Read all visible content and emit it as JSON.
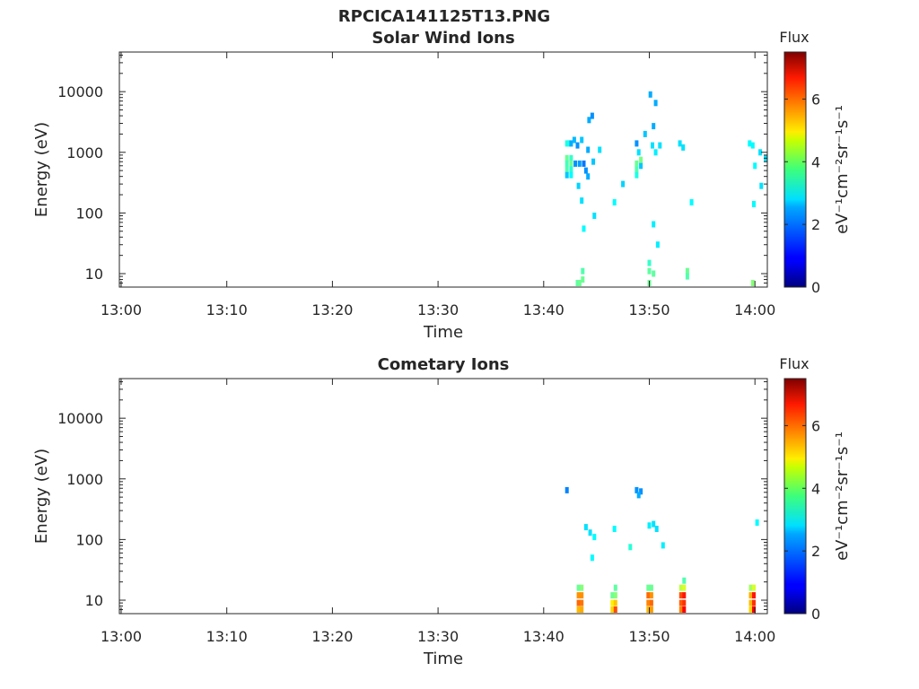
{
  "figure": {
    "title": "RPCICA141125T13.PNG"
  },
  "chart_data": [
    {
      "type": "heatmap",
      "title": "Solar Wind Ions",
      "xlabel": "Time",
      "ylabel": "Energy (eV)",
      "x_ticks": [
        "13:00",
        "13:10",
        "13:20",
        "13:30",
        "13:40",
        "13:50",
        "14:00"
      ],
      "x_range_min": [
        0,
        61
      ],
      "y_scale": "log",
      "y_range": [
        6,
        45000
      ],
      "y_ticks": [
        {
          "value": 10,
          "label": "10"
        },
        {
          "value": 100,
          "label": "100"
        },
        {
          "value": 1000,
          "label": "1000"
        },
        {
          "value": 10000,
          "label": "10000"
        }
      ],
      "colorbar": {
        "title": "Flux",
        "label": "eV⁻¹cm⁻²sr⁻¹s⁻¹",
        "range": [
          0,
          7.5
        ],
        "ticks": [
          "0",
          "2",
          "4",
          "6"
        ],
        "colormap": "jet"
      },
      "cells": [
        [
          42.2,
          1400,
          3.0
        ],
        [
          42.4,
          1400,
          3.0
        ],
        [
          42.6,
          1400,
          2.2
        ],
        [
          42.9,
          1600,
          2.3
        ],
        [
          43.6,
          1600,
          2.4
        ],
        [
          42.2,
          800,
          3.6
        ],
        [
          42.2,
          650,
          3.3
        ],
        [
          42.2,
          520,
          3.4
        ],
        [
          42.2,
          420,
          2.4
        ],
        [
          42.6,
          800,
          3.2
        ],
        [
          42.6,
          650,
          3.6
        ],
        [
          42.6,
          520,
          3.1
        ],
        [
          42.6,
          420,
          2.8
        ],
        [
          43.0,
          650,
          2.0
        ],
        [
          43.4,
          650,
          2.1
        ],
        [
          43.8,
          650,
          1.8
        ],
        [
          44.0,
          500,
          2.0
        ],
        [
          43.2,
          1300,
          2.0
        ],
        [
          44.2,
          1100,
          2.2
        ],
        [
          44.7,
          700,
          2.4
        ],
        [
          45.3,
          1100,
          2.6
        ],
        [
          43.3,
          280,
          2.5
        ],
        [
          43.6,
          160,
          2.6
        ],
        [
          44.2,
          400,
          2.2
        ],
        [
          44.8,
          90,
          2.6
        ],
        [
          43.8,
          55,
          2.8
        ],
        [
          44.3,
          3400,
          2.2
        ],
        [
          44.6,
          4000,
          2.0
        ],
        [
          46.7,
          150,
          2.8
        ],
        [
          47.5,
          300,
          2.5
        ],
        [
          48.8,
          1400,
          2.0
        ],
        [
          48.8,
          650,
          3.6
        ],
        [
          48.8,
          520,
          3.4
        ],
        [
          48.8,
          420,
          3.0
        ],
        [
          49.2,
          600,
          2.4
        ],
        [
          49.2,
          750,
          3.7
        ],
        [
          49.0,
          1000,
          2.6
        ],
        [
          49.6,
          2000,
          2.4
        ],
        [
          50.1,
          9000,
          2.2
        ],
        [
          50.6,
          6500,
          2.2
        ],
        [
          50.4,
          2700,
          2.2
        ],
        [
          50.3,
          1300,
          2.6
        ],
        [
          50.6,
          1000,
          2.7
        ],
        [
          51.0,
          1300,
          2.6
        ],
        [
          50.4,
          65,
          2.7
        ],
        [
          50.8,
          30,
          2.7
        ],
        [
          52.9,
          1400,
          2.6
        ],
        [
          53.2,
          1200,
          2.6
        ],
        [
          54.0,
          150,
          2.8
        ],
        [
          59.5,
          1400,
          2.8
        ],
        [
          59.8,
          1300,
          2.8
        ],
        [
          60.0,
          600,
          2.8
        ],
        [
          60.5,
          1000,
          2.6
        ],
        [
          60.6,
          280,
          2.6
        ],
        [
          61.0,
          800,
          2.6
        ],
        [
          59.9,
          140,
          2.8
        ],
        [
          43.2,
          7,
          3.5
        ],
        [
          43.4,
          7,
          3.6
        ],
        [
          43.7,
          8,
          3.6
        ],
        [
          43.7,
          11,
          3.4
        ],
        [
          50.0,
          7,
          3.6
        ],
        [
          50.0,
          11,
          3.5
        ],
        [
          50.0,
          15,
          3.2
        ],
        [
          50.4,
          10,
          3.5
        ],
        [
          53.6,
          11,
          3.6
        ],
        [
          53.6,
          9,
          3.4
        ],
        [
          59.8,
          7,
          3.8
        ]
      ]
    },
    {
      "type": "heatmap",
      "title": "Cometary Ions",
      "xlabel": "Time",
      "ylabel": "Energy (eV)",
      "x_ticks": [
        "13:00",
        "13:10",
        "13:20",
        "13:30",
        "13:40",
        "13:50",
        "14:00"
      ],
      "x_range_min": [
        0,
        61
      ],
      "y_scale": "log",
      "y_range": [
        6,
        45000
      ],
      "y_ticks": [
        {
          "value": 10,
          "label": "10"
        },
        {
          "value": 100,
          "label": "100"
        },
        {
          "value": 1000,
          "label": "1000"
        },
        {
          "value": 10000,
          "label": "10000"
        }
      ],
      "colorbar": {
        "title": "Flux",
        "label": "eV⁻¹cm⁻²sr⁻¹s⁻¹",
        "range": [
          0,
          7.5
        ],
        "ticks": [
          "0",
          "2",
          "4",
          "6"
        ],
        "colormap": "jet"
      },
      "cells": [
        [
          42.2,
          650,
          1.9
        ],
        [
          48.8,
          650,
          2.0
        ],
        [
          49.2,
          620,
          2.0
        ],
        [
          49.0,
          540,
          2.2
        ],
        [
          44.0,
          160,
          2.6
        ],
        [
          44.4,
          130,
          2.6
        ],
        [
          44.8,
          110,
          2.8
        ],
        [
          44.6,
          50,
          2.8
        ],
        [
          46.7,
          150,
          2.8
        ],
        [
          48.2,
          75,
          3.1
        ],
        [
          50.0,
          170,
          2.7
        ],
        [
          50.4,
          180,
          2.6
        ],
        [
          50.7,
          150,
          2.6
        ],
        [
          51.3,
          80,
          2.7
        ],
        [
          60.2,
          190,
          2.8
        ],
        [
          43.3,
          16,
          3.6
        ],
        [
          43.3,
          12,
          5.5
        ],
        [
          43.3,
          9,
          5.8
        ],
        [
          43.3,
          7,
          5.2
        ],
        [
          43.6,
          16,
          3.8
        ],
        [
          43.6,
          12,
          5.5
        ],
        [
          43.6,
          9,
          5.7
        ],
        [
          43.6,
          7,
          5.3
        ],
        [
          46.5,
          12,
          3.6
        ],
        [
          46.5,
          9,
          4.8
        ],
        [
          46.5,
          7,
          5.0
        ],
        [
          46.8,
          16,
          3.5
        ],
        [
          46.8,
          12,
          3.8
        ],
        [
          46.8,
          9,
          5.1
        ],
        [
          46.8,
          7,
          6.0
        ],
        [
          49.9,
          16,
          3.6
        ],
        [
          49.9,
          12,
          5.8
        ],
        [
          49.9,
          9,
          5.6
        ],
        [
          49.9,
          7,
          5.2
        ],
        [
          50.2,
          16,
          3.6
        ],
        [
          50.2,
          12,
          5.5
        ],
        [
          50.2,
          9,
          5.8
        ],
        [
          50.2,
          7,
          5.4
        ],
        [
          53.0,
          16,
          4.2
        ],
        [
          53.0,
          12,
          6.0
        ],
        [
          53.0,
          9,
          5.9
        ],
        [
          53.0,
          7,
          5.6
        ],
        [
          53.3,
          21,
          3.4
        ],
        [
          53.3,
          16,
          4.4
        ],
        [
          53.3,
          12,
          6.4
        ],
        [
          53.3,
          9,
          6.2
        ],
        [
          53.3,
          7,
          6.6
        ],
        [
          59.6,
          16,
          4.0
        ],
        [
          59.6,
          12,
          5.3
        ],
        [
          59.6,
          9,
          5.2
        ],
        [
          59.6,
          7,
          5.0
        ],
        [
          59.9,
          16,
          4.4
        ],
        [
          59.9,
          12,
          6.4
        ],
        [
          59.9,
          9,
          6.2
        ],
        [
          59.9,
          7,
          6.6
        ]
      ]
    }
  ]
}
